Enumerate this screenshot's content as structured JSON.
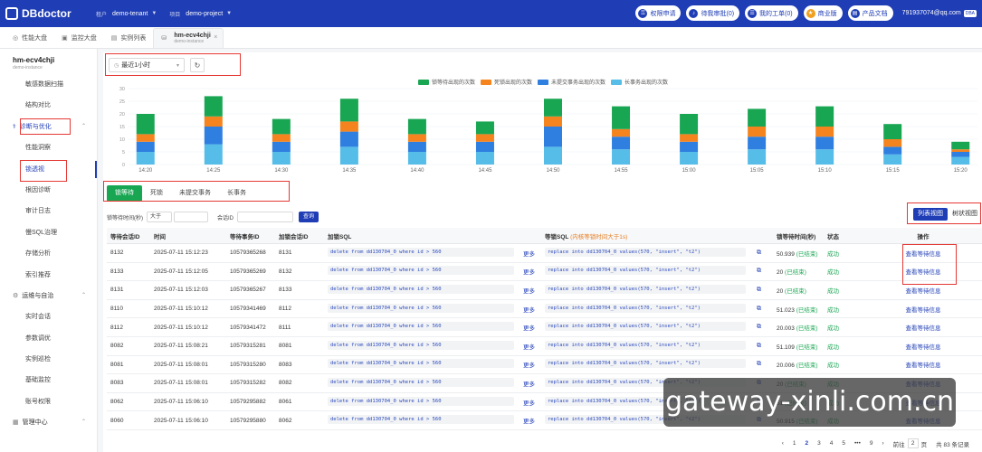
{
  "app": {
    "logo": "DBdoctor"
  },
  "header": {
    "tenant_label": "租户",
    "tenant_value": "demo-tenant",
    "project_label": "项目",
    "project_value": "demo-project",
    "buttons": [
      {
        "label": "权限申请"
      },
      {
        "label": "待我审批(0)"
      },
      {
        "label": "我的工单(0)"
      },
      {
        "label": "商业版"
      },
      {
        "label": "产品文档"
      }
    ],
    "user": "791937074@qq.com",
    "user_badge": "DBA"
  },
  "page_tabs": [
    {
      "label": "性能大盘"
    },
    {
      "label": "监控大盘"
    },
    {
      "label": "实例列表"
    }
  ],
  "active_tab": {
    "title": "hm-ecv4chji",
    "subtitle": "demo-instance"
  },
  "sidebar": {
    "instance_name": "hm-ecv4chji",
    "instance_sub": "demo-instance",
    "items_a": [
      "敏感数据扫描",
      "结构对比"
    ],
    "group_diag": "诊断与优化",
    "items_b": [
      "性能洞察",
      "锁透视",
      "根因诊断",
      "审计日志",
      "慢SQL治理",
      "存储分析",
      "索引推荐"
    ],
    "group_ops": "运维与自治",
    "items_c": [
      "实时会话",
      "参数调优",
      "实例巡检",
      "基础监控",
      "账号权限"
    ],
    "group_mgmt": "管理中心"
  },
  "main": {
    "time_range": "最近1小时",
    "sub_tabs": [
      {
        "label": "锁等待"
      },
      {
        "label": "死锁"
      },
      {
        "label": "未提交事务"
      },
      {
        "label": "长事务"
      }
    ],
    "filters": {
      "wait_label": "锁等待时间(秒)",
      "op": "大于",
      "session_label": "会话ID",
      "query": "查询"
    },
    "view_toggle": [
      "列表视图",
      "树状视图"
    ]
  },
  "chart_data": {
    "type": "bar",
    "stacked": true,
    "categories": [
      "14:20",
      "",
      "14:25",
      "",
      "14:30",
      "",
      "14:35",
      "",
      "14:40",
      "",
      "14:45",
      "",
      "14:50",
      "",
      "14:55",
      "",
      "15:00",
      "",
      "15:05",
      "",
      "15:10",
      "",
      "15:15",
      "",
      "15:20"
    ],
    "x_ticks": [
      "14:20",
      "14:25",
      "14:30",
      "14:35",
      "14:40",
      "14:45",
      "14:50",
      "14:55",
      "15:00",
      "15:05",
      "15:10",
      "15:15",
      "15:20"
    ],
    "ylim": [
      0,
      30
    ],
    "y_ticks": [
      0,
      5,
      10,
      15,
      20,
      25,
      30
    ],
    "grid": true,
    "legend_position": "top-center",
    "series": [
      {
        "name": "长事务出现的次数",
        "color": "#55bde8",
        "values": [
          5,
          0,
          8,
          0,
          5,
          0,
          7,
          0,
          5,
          0,
          5,
          0,
          7,
          0,
          6,
          0,
          5,
          0,
          6,
          0,
          6,
          0,
          4,
          0,
          3
        ]
      },
      {
        "name": "未提交事务出现的次数",
        "color": "#2f7fe0",
        "values": [
          4,
          0,
          7,
          0,
          4,
          0,
          6,
          0,
          4,
          0,
          4,
          0,
          8,
          0,
          5,
          0,
          4,
          0,
          5,
          0,
          5,
          0,
          3,
          0,
          2
        ]
      },
      {
        "name": "死锁出现的次数",
        "color": "#f5841f",
        "values": [
          3,
          0,
          4,
          0,
          3,
          0,
          4,
          0,
          3,
          0,
          3,
          0,
          4,
          0,
          3,
          0,
          3,
          0,
          4,
          0,
          4,
          0,
          3,
          0,
          1
        ]
      },
      {
        "name": "锁等待出现的次数",
        "color": "#19a653",
        "values": [
          8,
          0,
          8,
          0,
          6,
          0,
          9,
          0,
          6,
          0,
          5,
          0,
          7,
          0,
          9,
          0,
          8,
          0,
          7,
          0,
          8,
          0,
          6,
          0,
          3
        ]
      }
    ]
  },
  "table": {
    "headers": [
      "等待会话ID",
      "时间",
      "等待事务ID",
      "加锁会话ID",
      "加锁SQL",
      "",
      "等锁SQL",
      "",
      "锁等待时间(秒)",
      "状态",
      "操作"
    ],
    "lock_hint": "(内核等锁时间大于1s)",
    "more": "更多",
    "action": "查看等待信息",
    "rows": [
      {
        "wid": "8132",
        "time": "2025-07-11 15:12:23",
        "tx": "10579365268",
        "lid": "8131",
        "lsql": "delete from dd130704_0 where id > 560",
        "wsql": "replace into dd130704_0 values(570, \"insert\", \"t2\")",
        "wait": "50.939",
        "note": "(已结束)",
        "status": "成功"
      },
      {
        "wid": "8133",
        "time": "2025-07-11 15:12:05",
        "tx": "10579365269",
        "lid": "8132",
        "lsql": "delete from dd130704_0 where id > 560",
        "wsql": "replace into dd130704_0 values(570, \"insert\", \"t2\")",
        "wait": "20",
        "note": "(已结束)",
        "status": "成功"
      },
      {
        "wid": "8131",
        "time": "2025-07-11 15:12:03",
        "tx": "10579365267",
        "lid": "8133",
        "lsql": "delete from dd130704_0 where id > 560",
        "wsql": "replace into dd130704_0 values(570, \"insert\", \"t2\")",
        "wait": "20",
        "note": "(已结束)",
        "status": "成功"
      },
      {
        "wid": "8110",
        "time": "2025-07-11 15:10:12",
        "tx": "10579341469",
        "lid": "8112",
        "lsql": "delete from dd130704_0 where id > 560",
        "wsql": "replace into dd130704_0 values(570, \"insert\", \"t2\")",
        "wait": "51.023",
        "note": "(已结束)",
        "status": "成功"
      },
      {
        "wid": "8112",
        "time": "2025-07-11 15:10:12",
        "tx": "10579341472",
        "lid": "8111",
        "lsql": "delete from dd130704_0 where id > 560",
        "wsql": "replace into dd130704_0 values(570, \"insert\", \"t2\")",
        "wait": "20.003",
        "note": "(已结束)",
        "status": "成功"
      },
      {
        "wid": "8082",
        "time": "2025-07-11 15:08:21",
        "tx": "10579315281",
        "lid": "8081",
        "lsql": "delete from dd130704_0 where id > 560",
        "wsql": "replace into dd130704_0 values(570, \"insert\", \"t2\")",
        "wait": "51.109",
        "note": "(已结束)",
        "status": "成功"
      },
      {
        "wid": "8081",
        "time": "2025-07-11 15:08:01",
        "tx": "10579315280",
        "lid": "8083",
        "lsql": "delete from dd130704_0 where id > 560",
        "wsql": "replace into dd130704_0 values(570, \"insert\", \"t2\")",
        "wait": "20.006",
        "note": "(已结束)",
        "status": "成功"
      },
      {
        "wid": "8083",
        "time": "2025-07-11 15:08:01",
        "tx": "10579315282",
        "lid": "8082",
        "lsql": "delete from dd130704_0 where id > 560",
        "wsql": "replace into dd130704_0 values(570, \"insert\", \"t2\")",
        "wait": "20",
        "note": "(已结束)",
        "status": "成功"
      },
      {
        "wid": "8062",
        "time": "2025-07-11 15:06:10",
        "tx": "10579295882",
        "lid": "8061",
        "lsql": "delete from dd130704_0 where id > 560",
        "wsql": "replace into dd130704_0 values(570, \"insert\", \"t2\")",
        "wait": "51",
        "note": "(已结束)",
        "status": "成功"
      },
      {
        "wid": "8060",
        "time": "2025-07-11 15:06:10",
        "tx": "10579295880",
        "lid": "8062",
        "lsql": "delete from dd130704_0 where id > 560",
        "wsql": "replace into dd130704_0 values(570, \"insert\", \"t2\")",
        "wait": "50.915",
        "note": "(已结束)",
        "status": "成功"
      }
    ]
  },
  "pager": {
    "pages": [
      "1",
      "2",
      "3",
      "4",
      "5",
      "•••",
      "9"
    ],
    "current": "2",
    "goto_label": "前往",
    "goto_value": "2",
    "page_unit": "页",
    "total": "共 83 条记录"
  },
  "watermark": "gateway-xinli.com.cn"
}
